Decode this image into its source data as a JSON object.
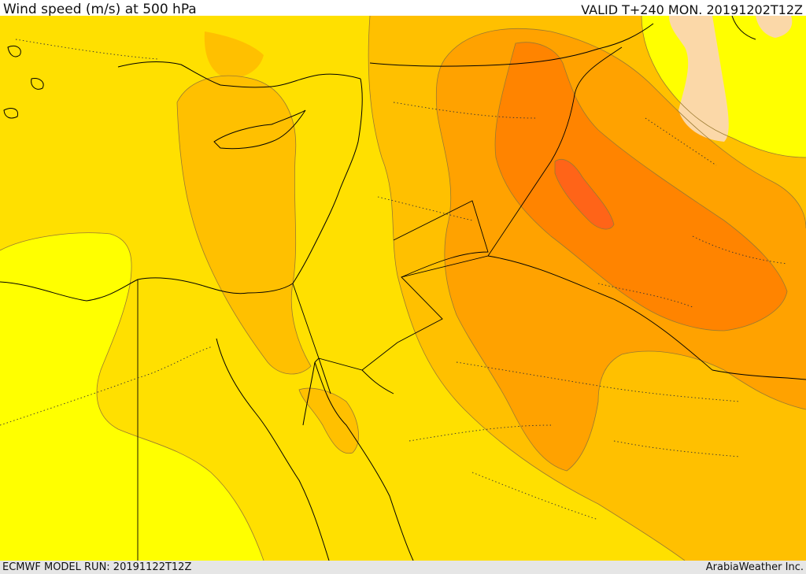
{
  "header": {
    "title": "Wind speed (m/s) at 500 hPa",
    "valid": "VALID T+240 MON. 20191202T12Z"
  },
  "footer": {
    "model_run": "ECMWF MODEL RUN: 20191122T12Z",
    "credit": "ArabiaWeather Inc."
  },
  "colors": {
    "band_10_15": "#ffff00",
    "band_15_20": "#ffe000",
    "band_20_25": "#ffc000",
    "band_25_30": "#ffa200",
    "band_30_35": "#ff8400",
    "band_35_40": "#ff6418",
    "band_low": "#fbd8a8",
    "land_border": "#000000",
    "contour": "#9a7a30"
  }
}
